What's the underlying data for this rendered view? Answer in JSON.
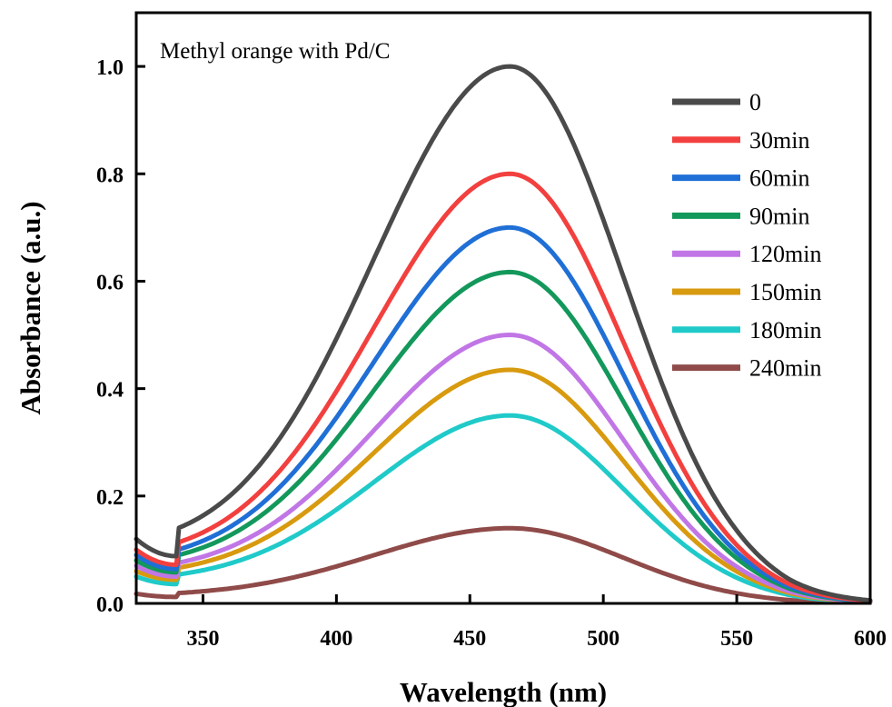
{
  "chart_data": {
    "type": "line",
    "title": "Methyl orange with Pd/C",
    "xlabel": "Wavelength (nm)",
    "ylabel": "Absorbance (a.u.)",
    "xlim": [
      325,
      600
    ],
    "ylim": [
      0,
      1.1
    ],
    "xticks": [
      "350",
      "400",
      "450",
      "500",
      "550",
      "600"
    ],
    "yticks": [
      "0.0",
      "0.2",
      "0.4",
      "0.6",
      "0.8",
      "1.0"
    ],
    "grid": false,
    "legend_position": "top-right",
    "peak_wavelength": 465,
    "series": [
      {
        "name": "0",
        "color": "#4a4a4a",
        "peak": 1.0,
        "start": 0.12,
        "min": 0.088
      },
      {
        "name": "30min",
        "color": "#f2403f",
        "peak": 0.8,
        "start": 0.1,
        "min": 0.072
      },
      {
        "name": "60min",
        "color": "#1f6fd6",
        "peak": 0.7,
        "start": 0.09,
        "min": 0.064
      },
      {
        "name": "90min",
        "color": "#13985b",
        "peak": 0.617,
        "start": 0.08,
        "min": 0.058
      },
      {
        "name": "120min",
        "color": "#c176e6",
        "peak": 0.5,
        "start": 0.07,
        "min": 0.05
      },
      {
        "name": "150min",
        "color": "#d89a0e",
        "peak": 0.435,
        "start": 0.06,
        "min": 0.044
      },
      {
        "name": "180min",
        "color": "#1fcac9",
        "peak": 0.35,
        "start": 0.05,
        "min": 0.036
      },
      {
        "name": "240min",
        "color": "#8f4b49",
        "peak": 0.14,
        "start": 0.018,
        "min": 0.012
      }
    ]
  }
}
